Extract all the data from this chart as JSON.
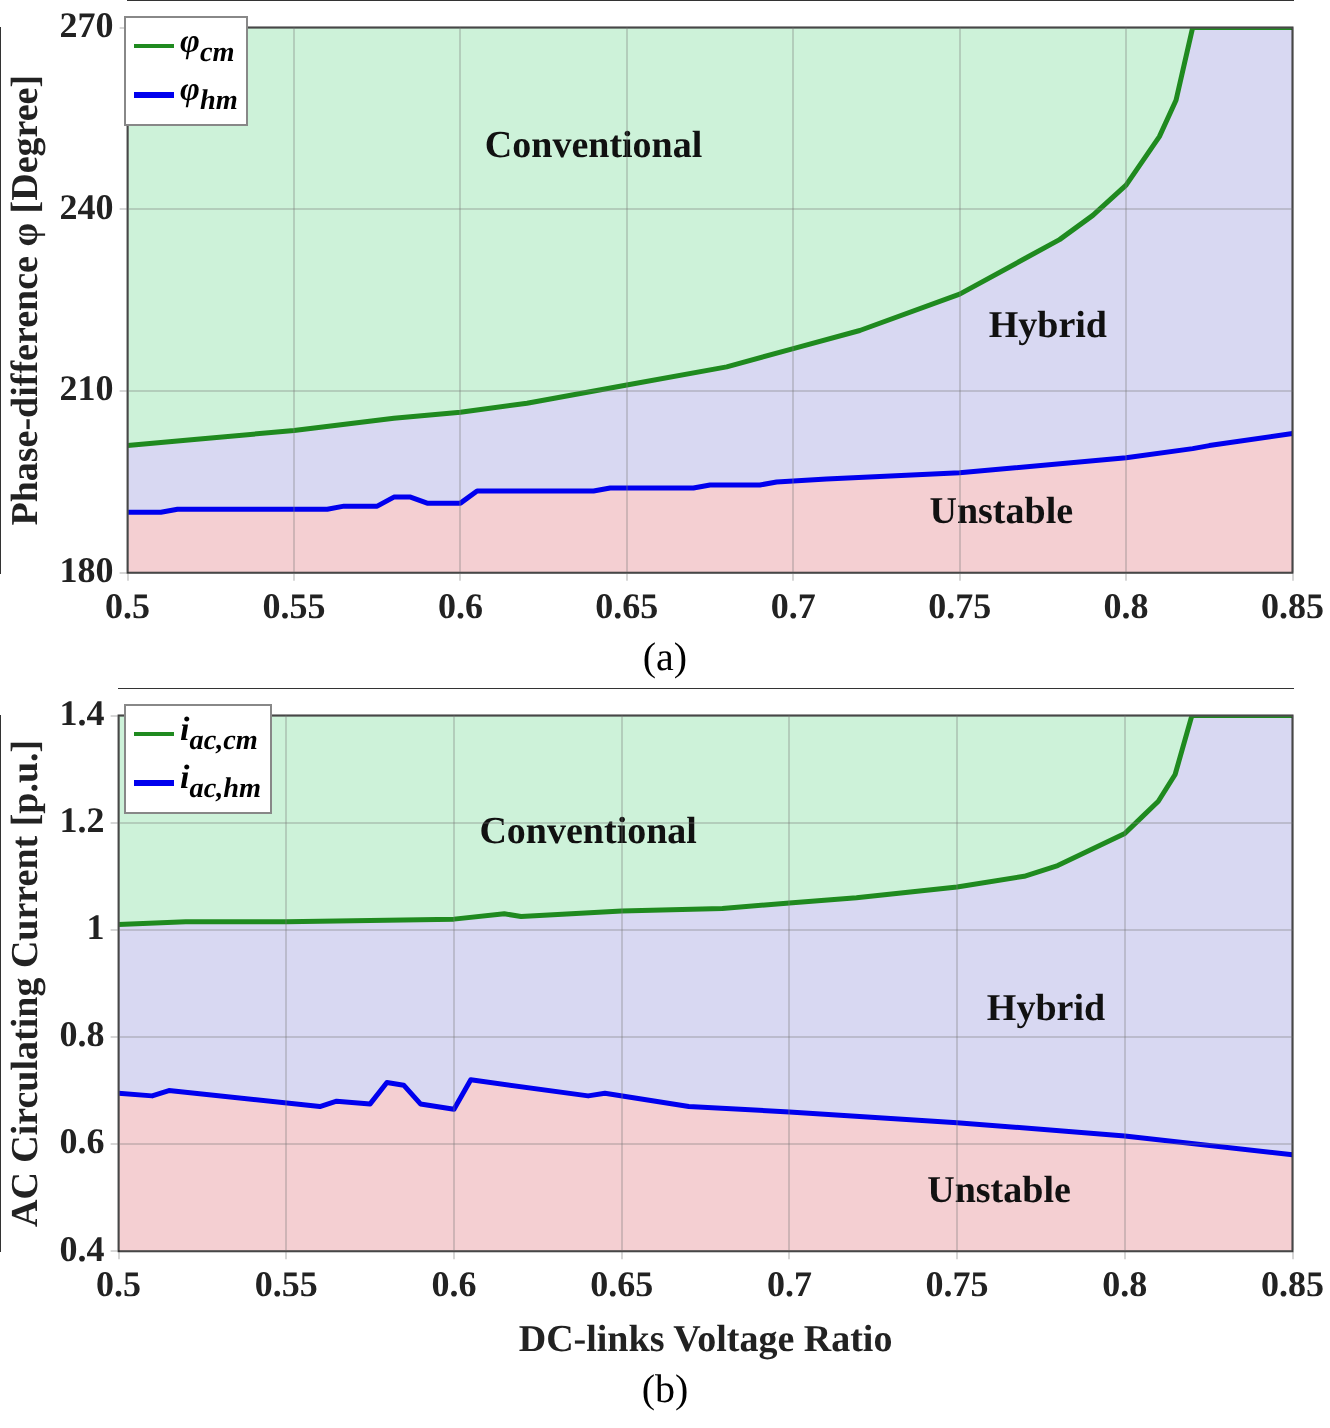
{
  "chart_data": [
    {
      "type": "area",
      "ylabel": "Phase-difference φ [Degree]",
      "xlim": [
        0.5,
        0.85
      ],
      "xticks": [
        0.5,
        0.55,
        0.6,
        0.65,
        0.7,
        0.75,
        0.8,
        0.85
      ],
      "ylim": [
        180,
        270
      ],
      "yticks": [
        180,
        210,
        240,
        270
      ],
      "grid": true,
      "legend": "top left",
      "annotations": [
        "Conventional",
        "Hybrid",
        "Unstable",
        "(a)"
      ],
      "series": [
        {
          "name": "φ$_{cm}$",
          "color": "#1f8a1f",
          "x": [
            0.5,
            0.52,
            0.55,
            0.58,
            0.6,
            0.62,
            0.65,
            0.68,
            0.7,
            0.72,
            0.75,
            0.77,
            0.78,
            0.79,
            0.8,
            0.805,
            0.81,
            0.815,
            0.82,
            0.85
          ],
          "values": [
            201,
            202,
            203.5,
            205.5,
            206.5,
            208,
            211,
            214,
            217,
            220,
            226,
            232,
            235,
            239,
            244,
            248,
            252,
            258,
            270,
            270
          ]
        },
        {
          "name": "φ$_{hm}$",
          "color": "#0000ee",
          "x": [
            0.5,
            0.51,
            0.515,
            0.56,
            0.565,
            0.575,
            0.58,
            0.585,
            0.59,
            0.6,
            0.605,
            0.64,
            0.645,
            0.67,
            0.675,
            0.69,
            0.695,
            0.71,
            0.75,
            0.8,
            0.82,
            0.825,
            0.85
          ],
          "values": [
            190,
            190,
            190.5,
            190.5,
            191,
            191,
            192.5,
            192.5,
            191.5,
            191.5,
            193.5,
            193.5,
            194,
            194,
            194.5,
            194.5,
            195,
            195.5,
            196.5,
            199,
            200.5,
            201,
            203
          ]
        }
      ]
    },
    {
      "type": "area",
      "xlabel": "DC-links Voltage Ratio",
      "ylabel": "AC Circulating Current [p.u.]",
      "xlim": [
        0.5,
        0.85
      ],
      "xticks": [
        0.5,
        0.55,
        0.6,
        0.65,
        0.7,
        0.75,
        0.8,
        0.85
      ],
      "ylim": [
        0.4,
        1.4
      ],
      "yticks": [
        0.4,
        0.6,
        0.8,
        1,
        1.2,
        1.4
      ],
      "grid": true,
      "legend": "top left",
      "annotations": [
        "Conventional",
        "Hybrid",
        "Unstable",
        "(b)"
      ],
      "series": [
        {
          "name": "i$_{ac,cm}$",
          "color": "#1f8a1f",
          "x": [
            0.5,
            0.52,
            0.55,
            0.6,
            0.615,
            0.62,
            0.65,
            0.68,
            0.7,
            0.72,
            0.75,
            0.77,
            0.78,
            0.79,
            0.8,
            0.805,
            0.81,
            0.815,
            0.82,
            0.85
          ],
          "values": [
            1.01,
            1.015,
            1.015,
            1.02,
            1.03,
            1.025,
            1.035,
            1.04,
            1.05,
            1.06,
            1.08,
            1.1,
            1.12,
            1.15,
            1.18,
            1.21,
            1.24,
            1.29,
            1.4,
            1.4
          ]
        },
        {
          "name": "i$_{ac,hm}$",
          "color": "#0000ee",
          "x": [
            0.5,
            0.51,
            0.515,
            0.56,
            0.565,
            0.575,
            0.58,
            0.585,
            0.59,
            0.6,
            0.605,
            0.64,
            0.645,
            0.67,
            0.7,
            0.75,
            0.8,
            0.85
          ],
          "values": [
            0.695,
            0.69,
            0.7,
            0.67,
            0.68,
            0.675,
            0.715,
            0.71,
            0.675,
            0.665,
            0.72,
            0.69,
            0.695,
            0.67,
            0.66,
            0.64,
            0.615,
            0.58
          ]
        }
      ]
    }
  ]
}
